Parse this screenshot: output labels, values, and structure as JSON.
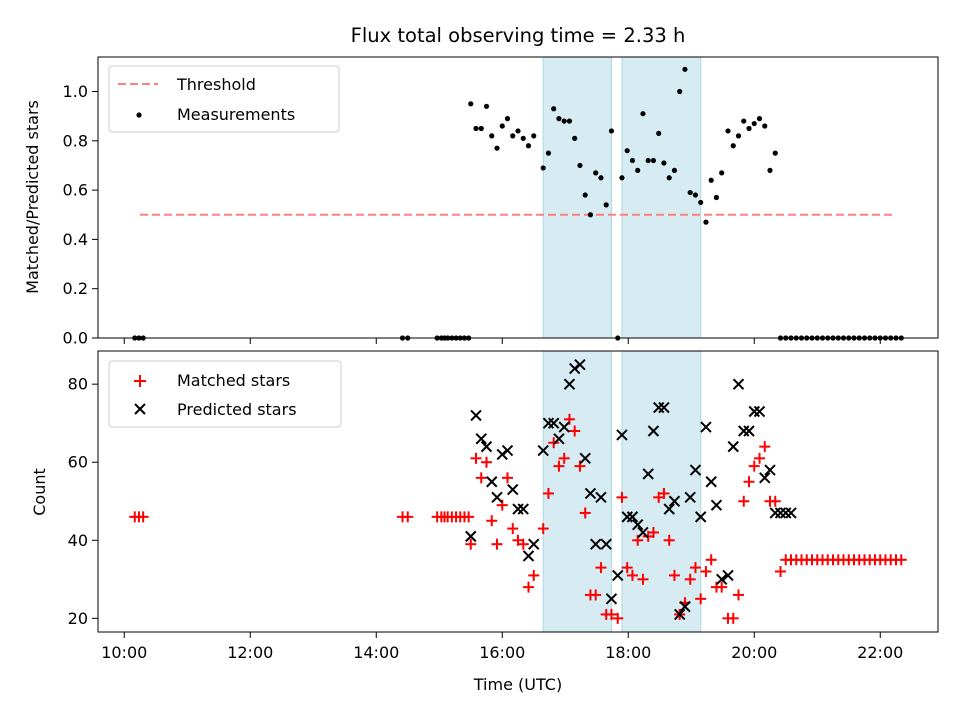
{
  "chart_data": [
    {
      "type": "scatter",
      "title": "Flux total observing time = 2.33 h",
      "xlabel": "",
      "ylabel": "Matched/Predicted stars",
      "xlim": [
        "09:35",
        "22:55"
      ],
      "ylim": [
        0,
        1.14
      ],
      "xticks": [
        "10:00",
        "12:00",
        "14:00",
        "16:00",
        "18:00",
        "20:00",
        "22:00"
      ],
      "yticks": [
        "0.0",
        "0.2",
        "0.4",
        "0.6",
        "0.8",
        "1.0"
      ],
      "grid": false,
      "legend": "top-left",
      "shaded_intervals": [
        [
          "16:39",
          "17:44"
        ],
        [
          "17:54",
          "19:09"
        ]
      ],
      "threshold": {
        "name": "Threshold",
        "y": 0.5,
        "x": [
          "10:15",
          "22:15"
        ],
        "color": "#ff7f7f"
      },
      "series": [
        {
          "name": "Measurements",
          "color": "#000000",
          "x": [
            "10:10",
            "10:14",
            "10:18",
            "14:25",
            "14:30",
            "14:58",
            "15:02",
            "15:05",
            "15:08",
            "15:12",
            "15:16",
            "15:20",
            "15:24",
            "15:28",
            "15:30",
            "15:35",
            "15:40",
            "15:45",
            "15:50",
            "15:55",
            "16:00",
            "16:05",
            "16:10",
            "16:15",
            "16:20",
            "16:25",
            "16:30",
            "16:39",
            "16:44",
            "16:49",
            "16:54",
            "16:59",
            "17:04",
            "17:09",
            "17:14",
            "17:19",
            "17:24",
            "17:29",
            "17:34",
            "17:39",
            "17:44",
            "17:50",
            "17:54",
            "17:59",
            "18:04",
            "18:09",
            "18:14",
            "18:19",
            "18:24",
            "18:29",
            "18:34",
            "18:39",
            "18:44",
            "18:49",
            "18:54",
            "18:59",
            "19:04",
            "19:09",
            "19:14",
            "19:19",
            "19:24",
            "19:29",
            "19:35",
            "19:40",
            "19:45",
            "19:50",
            "19:55",
            "20:00",
            "20:05",
            "20:10",
            "20:15",
            "20:20",
            "20:25",
            "20:30",
            "20:35",
            "20:40",
            "20:45",
            "20:50",
            "20:55",
            "21:00",
            "21:05",
            "21:10",
            "21:15",
            "21:20",
            "21:25",
            "21:30",
            "21:35",
            "21:40",
            "21:45",
            "21:50",
            "21:55",
            "22:00",
            "22:05",
            "22:10",
            "22:15",
            "22:20"
          ],
          "y": [
            0,
            0,
            0,
            0,
            0,
            0,
            0,
            0,
            0,
            0,
            0,
            0,
            0,
            0,
            0.95,
            0.85,
            0.85,
            0.94,
            0.82,
            0.77,
            0.86,
            0.89,
            0.82,
            0.84,
            0.81,
            0.78,
            0.82,
            0.69,
            0.75,
            0.93,
            0.89,
            0.88,
            0.88,
            0.81,
            0.7,
            0.58,
            0.5,
            0.67,
            0.65,
            0.54,
            0.84,
            0,
            0.65,
            0.76,
            0.72,
            0.68,
            0.91,
            0.72,
            0.72,
            0.83,
            0.71,
            0.65,
            0.68,
            1.0,
            1.09,
            0.59,
            0.58,
            0.55,
            0.47,
            0.64,
            0.57,
            0.67,
            0.84,
            0.78,
            0.82,
            0.88,
            0.85,
            0.87,
            0.89,
            0.86,
            0.68,
            0.75,
            0,
            0,
            0,
            0,
            0,
            0,
            0,
            0,
            0,
            0,
            0,
            0,
            0,
            0,
            0,
            0,
            0,
            0,
            0,
            0,
            0,
            0,
            0,
            0
          ]
        }
      ]
    },
    {
      "type": "scatter",
      "title": "",
      "xlabel": "Time (UTC)",
      "ylabel": "Count",
      "xlim": [
        "09:35",
        "22:55"
      ],
      "ylim": [
        16.5,
        88.5
      ],
      "xticks": [
        "10:00",
        "12:00",
        "14:00",
        "16:00",
        "18:00",
        "20:00",
        "22:00"
      ],
      "yticks": [
        "20",
        "40",
        "60",
        "80"
      ],
      "grid": false,
      "legend": "top-left",
      "shaded_intervals": [
        [
          "16:39",
          "17:44"
        ],
        [
          "17:54",
          "19:09"
        ]
      ],
      "series": [
        {
          "name": "Matched stars",
          "marker": "+",
          "color": "#ff0000",
          "x": [
            "10:10",
            "10:14",
            "10:18",
            "14:25",
            "14:30",
            "14:58",
            "15:02",
            "15:05",
            "15:08",
            "15:12",
            "15:16",
            "15:20",
            "15:24",
            "15:28",
            "15:30",
            "15:35",
            "15:40",
            "15:45",
            "15:50",
            "15:55",
            "16:00",
            "16:05",
            "16:10",
            "16:15",
            "16:20",
            "16:25",
            "16:30",
            "16:39",
            "16:44",
            "16:49",
            "16:54",
            "16:59",
            "17:04",
            "17:09",
            "17:14",
            "17:19",
            "17:24",
            "17:29",
            "17:34",
            "17:39",
            "17:44",
            "17:50",
            "17:54",
            "17:59",
            "18:04",
            "18:09",
            "18:14",
            "18:19",
            "18:24",
            "18:29",
            "18:34",
            "18:39",
            "18:44",
            "18:49",
            "18:54",
            "18:59",
            "19:04",
            "19:09",
            "19:14",
            "19:19",
            "19:24",
            "19:29",
            "19:35",
            "19:40",
            "19:45",
            "19:50",
            "19:55",
            "20:00",
            "20:05",
            "20:10",
            "20:15",
            "20:20",
            "20:25",
            "20:30",
            "20:35",
            "20:40",
            "20:45",
            "20:50",
            "20:55",
            "21:00",
            "21:05",
            "21:10",
            "21:15",
            "21:20",
            "21:25",
            "21:30",
            "21:35",
            "21:40",
            "21:45",
            "21:50",
            "21:55",
            "22:00",
            "22:05",
            "22:10",
            "22:15",
            "22:20"
          ],
          "y": [
            46,
            46,
            46,
            46,
            46,
            46,
            46,
            46,
            46,
            46,
            46,
            46,
            46,
            46,
            39,
            61,
            56,
            60,
            45,
            39,
            49,
            56,
            43,
            40,
            39,
            28,
            31,
            43,
            52,
            65,
            59,
            61,
            71,
            68,
            59,
            47,
            26,
            26,
            33,
            21,
            21,
            20,
            51,
            33,
            31,
            40,
            30,
            41,
            42,
            51,
            52,
            40,
            31,
            21,
            24,
            30,
            33,
            25,
            32,
            35,
            28,
            28,
            20,
            20,
            26,
            50,
            55,
            59,
            61,
            64,
            50,
            50,
            32,
            35,
            35,
            35,
            35,
            35,
            35,
            35,
            35,
            35,
            35,
            35,
            35,
            35,
            35,
            35,
            35,
            35,
            35,
            35,
            35,
            35,
            35,
            35
          ]
        },
        {
          "name": "Predicted stars",
          "marker": "x",
          "color": "#000000",
          "x": [
            "15:30",
            "15:35",
            "15:40",
            "15:45",
            "15:50",
            "15:55",
            "16:00",
            "16:05",
            "16:10",
            "16:15",
            "16:20",
            "16:25",
            "16:30",
            "16:39",
            "16:44",
            "16:49",
            "16:54",
            "16:59",
            "17:04",
            "17:09",
            "17:14",
            "17:19",
            "17:24",
            "17:29",
            "17:34",
            "17:39",
            "17:44",
            "17:50",
            "17:54",
            "17:59",
            "18:04",
            "18:09",
            "18:14",
            "18:19",
            "18:24",
            "18:29",
            "18:34",
            "18:39",
            "18:44",
            "18:49",
            "18:54",
            "18:59",
            "19:04",
            "19:09",
            "19:14",
            "19:19",
            "19:24",
            "19:29",
            "19:35",
            "19:40",
            "19:45",
            "19:50",
            "19:55",
            "20:00",
            "20:05",
            "20:10",
            "20:15",
            "20:20",
            "20:25",
            "20:30",
            "20:35"
          ],
          "y": [
            41,
            72,
            66,
            64,
            55,
            51,
            62,
            63,
            53,
            48,
            48,
            36,
            39,
            63,
            70,
            70,
            66,
            69,
            80,
            84,
            85,
            61,
            52,
            39,
            51,
            39,
            25,
            31,
            67,
            46,
            46,
            44,
            42,
            57,
            68,
            74,
            74,
            48,
            50,
            21,
            23,
            51,
            58,
            46,
            69,
            55,
            49,
            30,
            31,
            64,
            80,
            68,
            68,
            73,
            73,
            56,
            58,
            47,
            47,
            47,
            47
          ]
        }
      ]
    }
  ]
}
